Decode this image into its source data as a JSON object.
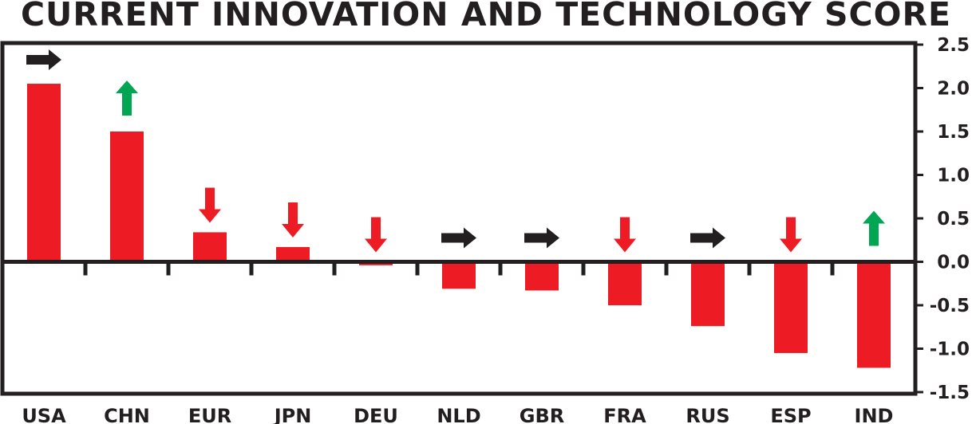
{
  "chart_data": {
    "type": "bar",
    "title": "CURRENT INNOVATION AND TECHNOLOGY SCORE",
    "categories": [
      "USA",
      "CHN",
      "EUR",
      "JPN",
      "DEU",
      "NLD",
      "GBR",
      "FRA",
      "RUS",
      "ESP",
      "IND"
    ],
    "values": [
      2.05,
      1.5,
      0.34,
      0.17,
      -0.04,
      -0.31,
      -0.33,
      -0.5,
      -0.74,
      -1.05,
      -1.22
    ],
    "trends": [
      "right",
      "up",
      "down",
      "down",
      "down",
      "right",
      "right",
      "down",
      "right",
      "down",
      "up"
    ],
    "ylim": [
      -1.5,
      2.5
    ],
    "yticks": [
      "2.5",
      "2.0",
      "1.5",
      "1.0",
      "0.5",
      "0.0",
      "-0.5",
      "-1.0",
      "-1.5"
    ],
    "ytick_values": [
      2.5,
      2.0,
      1.5,
      1.0,
      0.5,
      0.0,
      -0.5,
      -1.0,
      -1.5
    ],
    "xlabel": "",
    "ylabel": "",
    "grid": false,
    "colors": {
      "bar": "#ed1c24",
      "up": "#00a651",
      "down": "#ed1c24",
      "right": "#231f20",
      "axis": "#231f20"
    }
  }
}
